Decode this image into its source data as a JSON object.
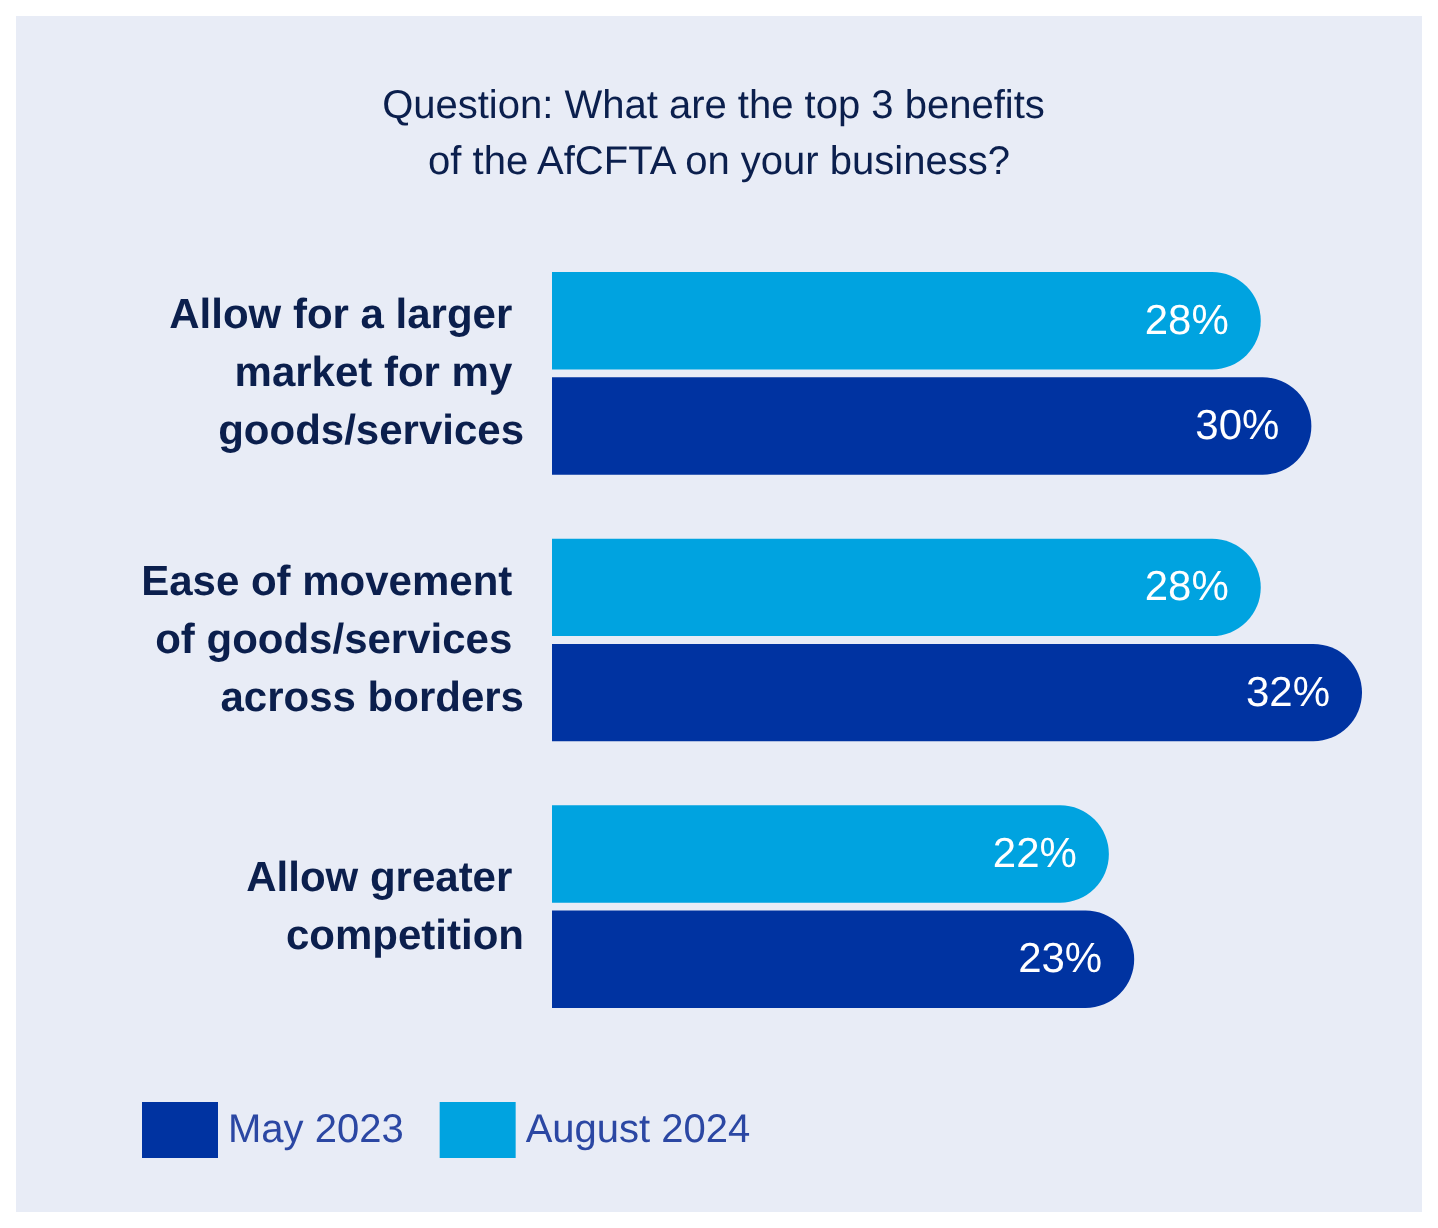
{
  "chart_data": {
    "type": "bar",
    "orientation": "horizontal",
    "title": "Question: What are the top 3 benefits of the AfCFTA on your business?",
    "categories": [
      "Allow for a larger market for my goods/services",
      "Ease of movement of goods/services across borders",
      "Allow greater competition"
    ],
    "series": [
      {
        "name": "May 2023",
        "color": "#0033a1",
        "values": [
          30,
          32,
          23
        ],
        "value_labels": [
          "30%",
          "32%",
          "23%"
        ]
      },
      {
        "name": "August 2024",
        "color": "#00a3e0",
        "values": [
          28,
          28,
          22
        ],
        "value_labels": [
          "28%",
          "28%",
          "22%"
        ]
      }
    ],
    "legend": "bottom left",
    "grid": false,
    "tick_labels": "y"
  }
}
